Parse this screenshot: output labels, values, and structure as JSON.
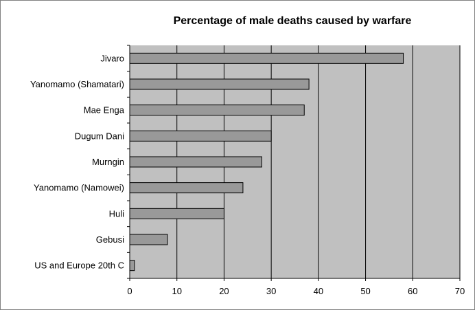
{
  "chart_data": {
    "type": "bar",
    "orientation": "horizontal",
    "title": "Percentage of male deaths caused by warfare",
    "xlabel": "",
    "ylabel": "",
    "categories": [
      "Jivaro",
      "Yanomamo (Shamatari)",
      "Mae Enga",
      "Dugum Dani",
      "Murngin",
      "Yanomamo (Namowei)",
      "Huli",
      "Gebusi",
      "US and Europe 20th C"
    ],
    "values": [
      58,
      38,
      37,
      30,
      28,
      24,
      20,
      8,
      1
    ],
    "xlim": [
      0,
      70
    ],
    "xticks": [
      0,
      10,
      20,
      30,
      40,
      50,
      60,
      70
    ],
    "grid": true,
    "legend": "none",
    "colors": {
      "bar_fill": "#999999",
      "bar_stroke": "#000000",
      "plot_background": "#c0c0c0",
      "gridline": "#000000"
    }
  }
}
